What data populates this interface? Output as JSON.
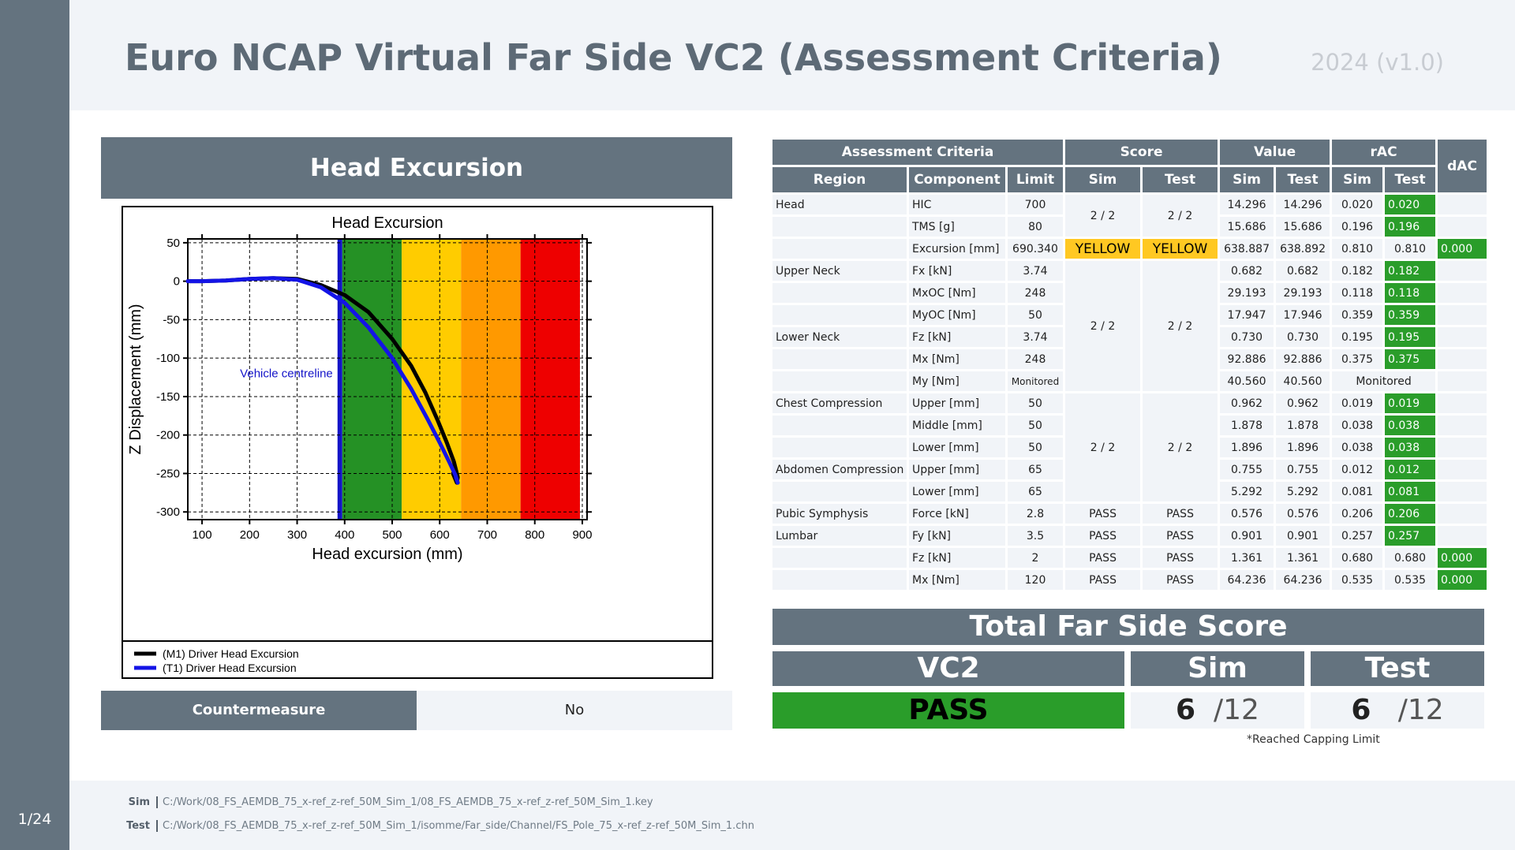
{
  "page": {
    "title": "Euro NCAP Virtual Far Side VC2 (Assessment Criteria)",
    "version": "2024 (v1.0)",
    "page_number": "1/24"
  },
  "footer": {
    "sim_label": "Sim",
    "sim_path": "C:/Work/08_FS_AEMDB_75_x-ref_z-ref_50M_Sim_1/08_FS_AEMDB_75_x-ref_z-ref_50M_Sim_1.key",
    "test_label": "Test",
    "test_path": "C:/Work/08_FS_AEMDB_75_x-ref_z-ref_50M_Sim_1/isomme/Far_side/Channel/FS_Pole_75_x-ref_z-ref_50M_Sim_1.chn"
  },
  "chart_panel": {
    "heading": "Head Excursion",
    "countermeasure_label": "Countermeasure",
    "countermeasure_value": "No"
  },
  "chart_data": {
    "type": "line",
    "title": "Head Excursion",
    "xlabel": "Head excursion (mm)",
    "ylabel": "Z Displacement (mm)",
    "xlim": [
      70,
      910
    ],
    "ylim": [
      -310,
      55
    ],
    "xticks": [
      100,
      200,
      300,
      400,
      500,
      600,
      700,
      800,
      900
    ],
    "yticks": [
      50,
      0,
      -50,
      -100,
      -150,
      -200,
      -250,
      -300
    ],
    "grid": true,
    "legend_position": "bottom",
    "annotation": {
      "text": "Vehicle centreline",
      "x": 385
    },
    "zones": [
      {
        "from": 385,
        "to": 395,
        "color": "#1414c8"
      },
      {
        "from": 395,
        "to": 520,
        "color": "#259125"
      },
      {
        "from": 520,
        "to": 645,
        "color": "#ffcc00"
      },
      {
        "from": 645,
        "to": 770,
        "color": "#ff9900"
      },
      {
        "from": 770,
        "to": 895,
        "color": "#ee0000"
      }
    ],
    "series": [
      {
        "name": "(M1) Driver Head Excursion",
        "color": "#000000",
        "x": [
          70,
          100,
          150,
          200,
          250,
          300,
          350,
          400,
          450,
          500,
          540,
          570,
          595,
          615,
          630,
          638,
          636,
          628
        ],
        "y": [
          0,
          0,
          1,
          3,
          4,
          3,
          -5,
          -18,
          -40,
          -75,
          -110,
          -145,
          -180,
          -210,
          -235,
          -255,
          -262,
          -250
        ]
      },
      {
        "name": "(T1) Driver Head Excursion",
        "color": "#1414e6",
        "x": [
          70,
          100,
          150,
          200,
          250,
          300,
          350,
          400,
          450,
          500,
          540,
          575,
          600,
          620,
          633,
          638,
          634
        ],
        "y": [
          0,
          0,
          1,
          3,
          4,
          2,
          -8,
          -28,
          -60,
          -100,
          -140,
          -180,
          -210,
          -235,
          -252,
          -262,
          -255
        ]
      }
    ]
  },
  "criteria_table": {
    "headers": {
      "assessment_criteria": "Assessment Criteria",
      "score": "Score",
      "value": "Value",
      "rac": "rAC",
      "dac": "dAC",
      "region": "Region",
      "component": "Component",
      "limit": "Limit",
      "sim": "Sim",
      "test": "Test"
    },
    "rows": [
      {
        "region": "Head",
        "component": "HIC",
        "limit": "700",
        "val_sim": "14.296",
        "val_test": "14.296",
        "rac_sim": "0.020",
        "rac_test": "0.020",
        "dac": ""
      },
      {
        "region": "",
        "component": "TMS [g]",
        "limit": "80",
        "val_sim": "15.686",
        "val_test": "15.686",
        "rac_sim": "0.196",
        "rac_test": "0.196",
        "dac": ""
      },
      {
        "region": "",
        "component": "Excursion [mm]",
        "limit": "690.340",
        "val_sim": "638.887",
        "val_test": "638.892",
        "rac_sim": "0.810",
        "rac_test": "0.810",
        "dac": "0.000"
      },
      {
        "region": "Upper Neck",
        "component": "Fx [kN]",
        "limit": "3.74",
        "val_sim": "0.682",
        "val_test": "0.682",
        "rac_sim": "0.182",
        "rac_test": "0.182",
        "dac": ""
      },
      {
        "region": "",
        "component": "MxOC [Nm]",
        "limit": "248",
        "val_sim": "29.193",
        "val_test": "29.193",
        "rac_sim": "0.118",
        "rac_test": "0.118",
        "dac": ""
      },
      {
        "region": "",
        "component": "MyOC [Nm]",
        "limit": "50",
        "val_sim": "17.947",
        "val_test": "17.946",
        "rac_sim": "0.359",
        "rac_test": "0.359",
        "dac": ""
      },
      {
        "region": "Lower Neck",
        "component": "Fz [kN]",
        "limit": "3.74",
        "val_sim": "0.730",
        "val_test": "0.730",
        "rac_sim": "0.195",
        "rac_test": "0.195",
        "dac": ""
      },
      {
        "region": "",
        "component": "Mx [Nm]",
        "limit": "248",
        "val_sim": "92.886",
        "val_test": "92.886",
        "rac_sim": "0.375",
        "rac_test": "0.375",
        "dac": ""
      },
      {
        "region": "",
        "component": "My [Nm]",
        "limit": "Monitored",
        "val_sim": "40.560",
        "val_test": "40.560",
        "rac_sim": "",
        "rac_test": "Monitored",
        "dac": ""
      },
      {
        "region": "Chest Compression",
        "component": "Upper [mm]",
        "limit": "50",
        "val_sim": "0.962",
        "val_test": "0.962",
        "rac_sim": "0.019",
        "rac_test": "0.019",
        "dac": ""
      },
      {
        "region": "",
        "component": "Middle [mm]",
        "limit": "50",
        "val_sim": "1.878",
        "val_test": "1.878",
        "rac_sim": "0.038",
        "rac_test": "0.038",
        "dac": ""
      },
      {
        "region": "",
        "component": "Lower [mm]",
        "limit": "50",
        "val_sim": "1.896",
        "val_test": "1.896",
        "rac_sim": "0.038",
        "rac_test": "0.038",
        "dac": ""
      },
      {
        "region": "Abdomen Compression",
        "component": "Upper [mm]",
        "limit": "65",
        "val_sim": "0.755",
        "val_test": "0.755",
        "rac_sim": "0.012",
        "rac_test": "0.012",
        "dac": ""
      },
      {
        "region": "",
        "component": "Lower [mm]",
        "limit": "65",
        "val_sim": "5.292",
        "val_test": "5.292",
        "rac_sim": "0.081",
        "rac_test": "0.081",
        "dac": ""
      },
      {
        "region": "Pubic Symphysis",
        "component": "Force [kN]",
        "limit": "2.8",
        "score_sim": "PASS",
        "score_test": "PASS",
        "val_sim": "0.576",
        "val_test": "0.576",
        "rac_sim": "0.206",
        "rac_test": "0.206",
        "dac": ""
      },
      {
        "region": "Lumbar",
        "component": "Fy [kN]",
        "limit": "3.5",
        "score_sim": "PASS",
        "score_test": "PASS",
        "val_sim": "0.901",
        "val_test": "0.901",
        "rac_sim": "0.257",
        "rac_test": "0.257",
        "dac": ""
      },
      {
        "region": "",
        "component": "Fz [kN]",
        "limit": "2",
        "score_sim": "PASS",
        "score_test": "PASS",
        "val_sim": "1.361",
        "val_test": "1.361",
        "rac_sim": "0.680",
        "rac_test": "0.680",
        "dac": "0.000"
      },
      {
        "region": "",
        "component": "Mx [Nm]",
        "limit": "120",
        "score_sim": "PASS",
        "score_test": "PASS",
        "val_sim": "64.236",
        "val_test": "64.236",
        "rac_sim": "0.535",
        "rac_test": "0.535",
        "dac": "0.000"
      }
    ],
    "merged_scores": {
      "head_sim": "2 / 2",
      "head_test": "2 / 2",
      "excursion_sim": "YELLOW",
      "excursion_test": "YELLOW",
      "neck_sim": "2 / 2",
      "neck_test": "2 / 2",
      "chest_sim": "2 / 2",
      "chest_test": "2 / 2"
    }
  },
  "total": {
    "heading": "Total Far Side Score",
    "vc2_label": "VC2",
    "sim_label": "Sim",
    "test_label": "Test",
    "result": "PASS",
    "sim_score": "6",
    "sim_max": "/12",
    "test_score": "6",
    "test_max": "/12",
    "note": "*Reached Capping Limit"
  },
  "colors": {
    "header_grey": "#64737f",
    "light_bg": "#f1f4f8",
    "pass_green": "#2a9d2a",
    "warn_yellow": "#ffc822"
  }
}
